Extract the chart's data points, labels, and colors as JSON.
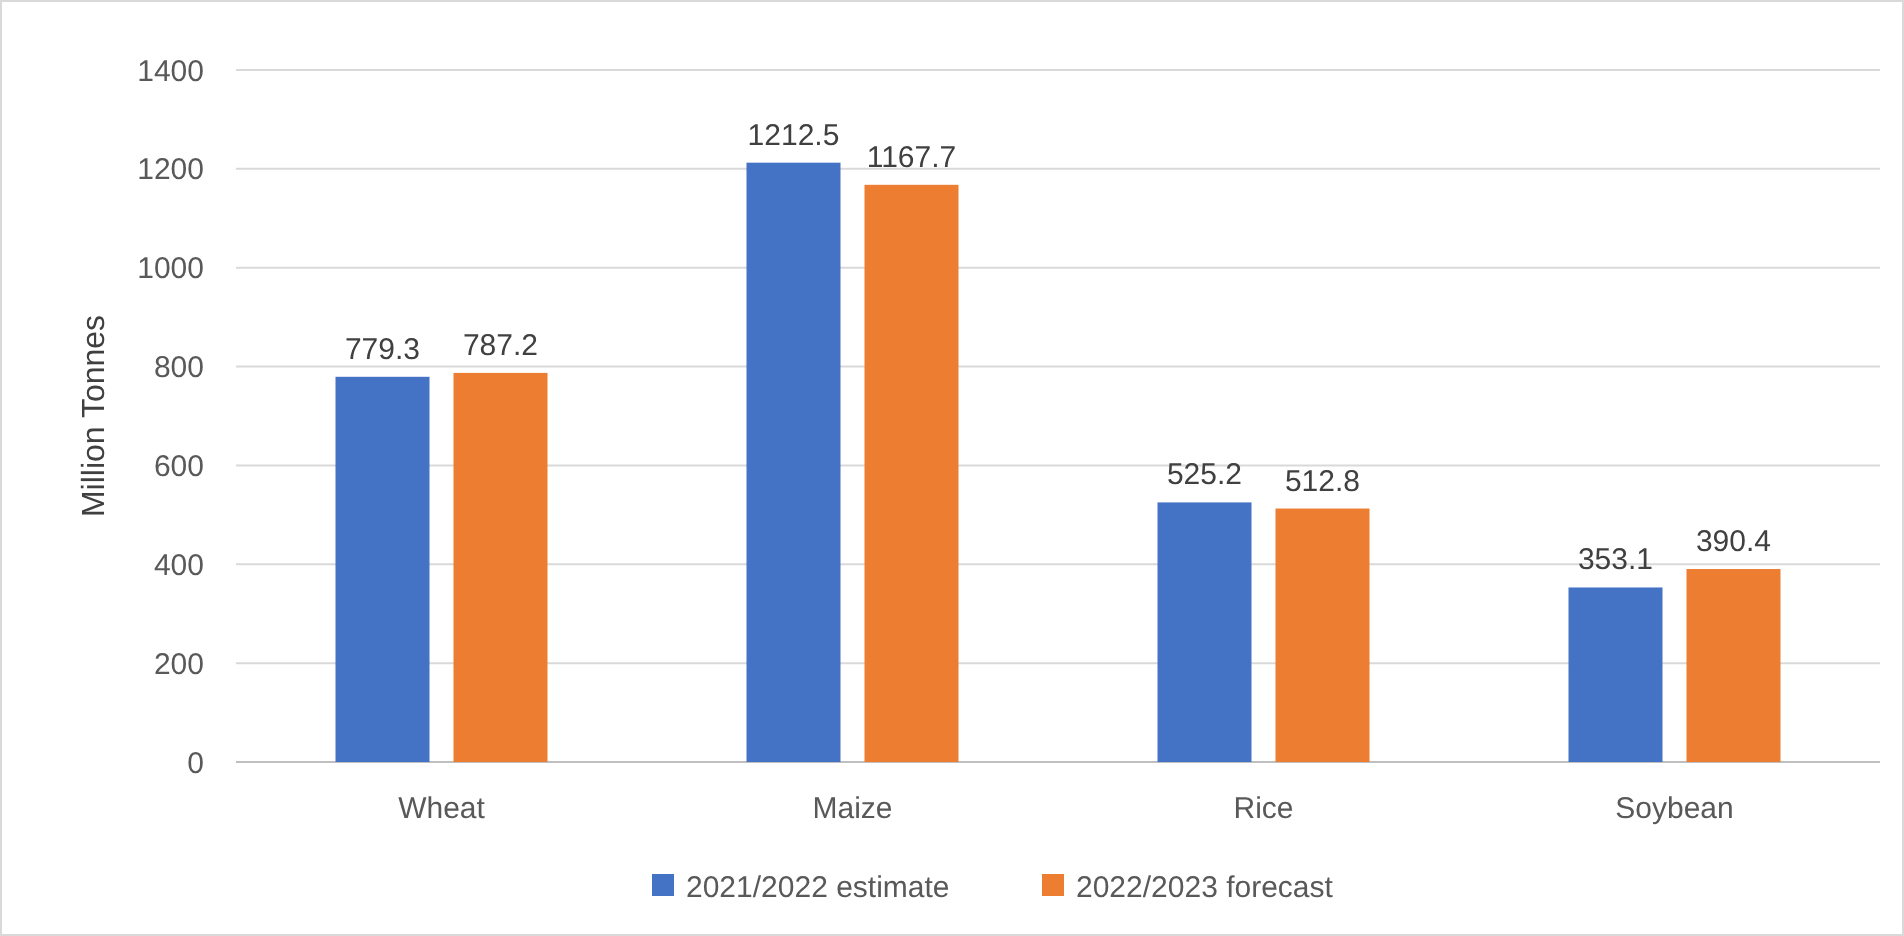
{
  "chart_data": {
    "type": "bar",
    "ylabel": "Million Tonnes",
    "categories": [
      "Wheat",
      "Maize",
      "Rice",
      "Soybean"
    ],
    "series": [
      {
        "name": "2021/2022 estimate",
        "color": "#4472c4",
        "values": [
          779.3,
          1212.5,
          525.2,
          353.1
        ]
      },
      {
        "name": "2022/2023 forecast",
        "color": "#ed7d31",
        "values": [
          787.2,
          1167.7,
          512.8,
          390.4
        ]
      }
    ],
    "ylim": [
      0,
      1400
    ],
    "yticks": [
      0,
      200,
      400,
      600,
      800,
      1000,
      1200,
      1400
    ],
    "grid": "y",
    "legend": "bottom",
    "data_labels": true
  }
}
